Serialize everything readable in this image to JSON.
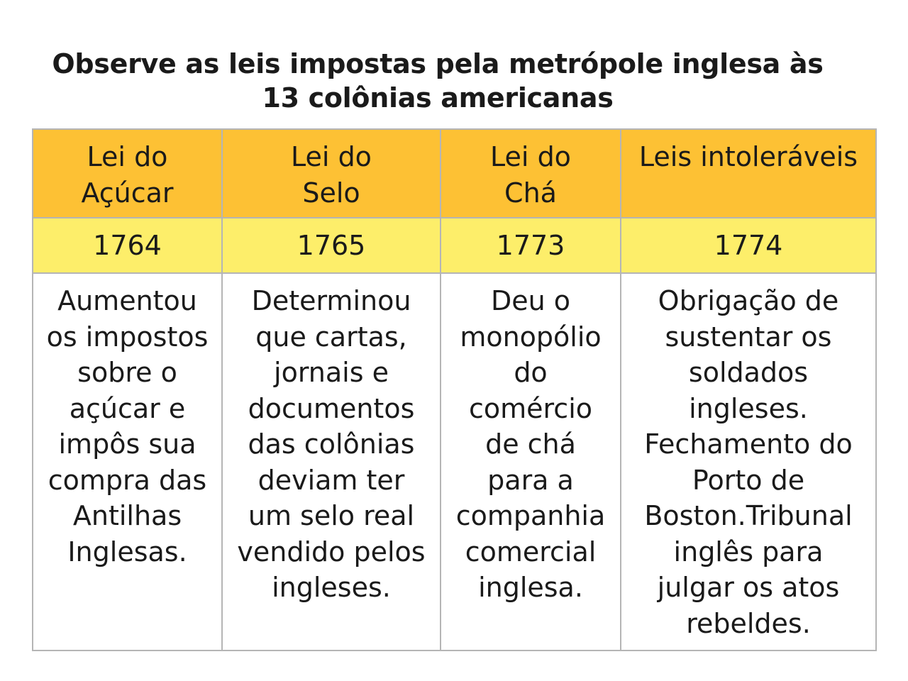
{
  "title": {
    "line1": "Observe as leis impostas pela metrópole inglesa às",
    "line2": "13 colônias americanas"
  },
  "laws": [
    {
      "name": [
        "Lei do",
        "Açúcar"
      ],
      "year": "1764",
      "description": [
        "Aumentou",
        "os impostos",
        "sobre o",
        "açúcar e",
        "impôs sua",
        "compra das",
        "Antilhas",
        "Inglesas."
      ]
    },
    {
      "name": [
        "Lei do",
        "Selo"
      ],
      "year": "1765",
      "description": [
        "Determinou",
        "que cartas,",
        "jornais e",
        "documentos",
        "das colônias",
        "deviam ter",
        "um selo real",
        "vendido pelos",
        "ingleses."
      ]
    },
    {
      "name": [
        "Lei do",
        "Chá"
      ],
      "year": "1773",
      "description": [
        "Deu o",
        "monopólio",
        "do",
        "comércio",
        "de chá",
        "para a",
        "companhia",
        "comercial",
        "inglesa."
      ]
    },
    {
      "name": [
        "Leis intoleráveis"
      ],
      "year": "1774",
      "description": [
        "Obrigação de",
        "sustentar os",
        "soldados",
        "ingleses.",
        "Fechamento do",
        "Porto de",
        "Boston.Tribunal",
        "inglês para",
        "julgar os atos",
        "rebeldes."
      ]
    }
  ],
  "colors": {
    "header_bg": "#fdc134",
    "year_bg": "#fdee6a",
    "border": "#b5b5b5"
  }
}
